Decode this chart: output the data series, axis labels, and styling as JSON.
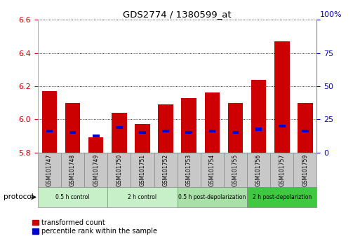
{
  "title": "GDS2774 / 1380599_at",
  "samples": [
    "GSM101747",
    "GSM101748",
    "GSM101749",
    "GSM101750",
    "GSM101751",
    "GSM101752",
    "GSM101753",
    "GSM101754",
    "GSM101755",
    "GSM101756",
    "GSM101757",
    "GSM101759"
  ],
  "red_values": [
    6.17,
    6.1,
    5.89,
    6.04,
    5.97,
    6.09,
    6.13,
    6.16,
    6.1,
    6.24,
    6.47,
    6.1
  ],
  "blue_values": [
    5.93,
    5.92,
    5.9,
    5.95,
    5.92,
    5.93,
    5.92,
    5.93,
    5.92,
    5.94,
    5.96,
    5.93
  ],
  "ylim_left": [
    5.8,
    6.6
  ],
  "ylim_right": [
    0,
    100
  ],
  "yticks_left": [
    5.8,
    6.0,
    6.2,
    6.4,
    6.6
  ],
  "yticks_right": [
    0,
    25,
    50,
    75,
    100
  ],
  "bar_bottom": 5.8,
  "bar_width": 0.65,
  "group_colors": [
    "#c8f0c8",
    "#c8f0c8",
    "#a8e0a8",
    "#40c840"
  ],
  "group_labels": [
    "0.5 h control",
    "2 h control",
    "0.5 h post-depolarization",
    "2 h post-depolariztion"
  ],
  "group_ranges": [
    [
      0,
      3
    ],
    [
      3,
      6
    ],
    [
      6,
      9
    ],
    [
      9,
      12
    ]
  ],
  "protocol_label": "protocol",
  "legend_red": "transformed count",
  "legend_blue": "percentile rank within the sample",
  "red_color": "#cc0000",
  "blue_color": "#0000cc",
  "tick_color_left": "#cc0000",
  "tick_color_right": "#0000cc",
  "bg_color": "#ffffff",
  "label_bg_color": "#c8c8c8"
}
